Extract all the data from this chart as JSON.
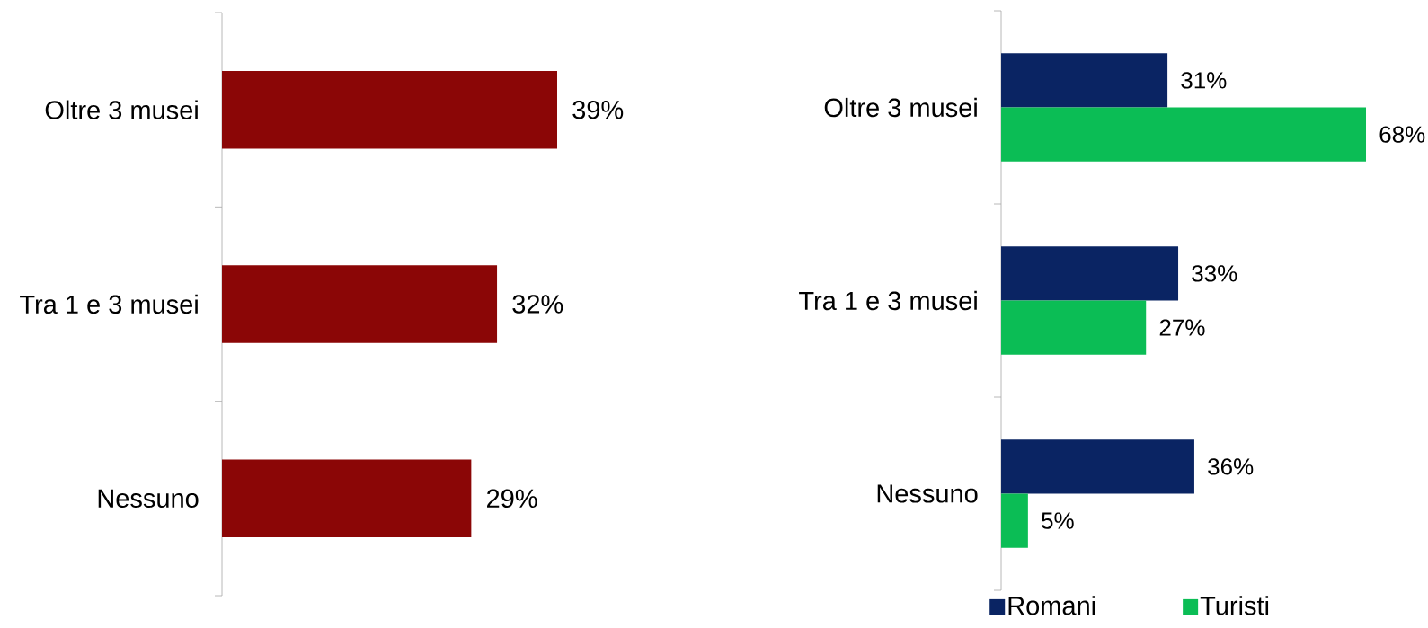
{
  "chart_data": [
    {
      "type": "bar",
      "orientation": "horizontal",
      "categories": [
        "Oltre 3 musei",
        "Tra 1 e 3 musei",
        "Nessuno"
      ],
      "series": [
        {
          "color": "#8b0606",
          "values": [
            39,
            32,
            29
          ],
          "value_labels": [
            "39%",
            "32%",
            "29%"
          ]
        }
      ],
      "tick_labels": "y"
    },
    {
      "type": "bar",
      "orientation": "horizontal",
      "categories": [
        "Oltre 3 musei",
        "Tra 1 e 3 musei",
        "Nessuno"
      ],
      "series": [
        {
          "name": "Romani",
          "color": "#0a2463",
          "values": [
            31,
            33,
            36
          ],
          "value_labels": [
            "31%",
            "33%",
            "36%"
          ]
        },
        {
          "name": "Turisti",
          "color": "#0bbd55",
          "values": [
            68,
            27,
            5
          ],
          "value_labels": [
            "68%",
            "27%",
            "5%"
          ]
        }
      ],
      "tick_labels": "y",
      "legend": "bottom"
    }
  ]
}
